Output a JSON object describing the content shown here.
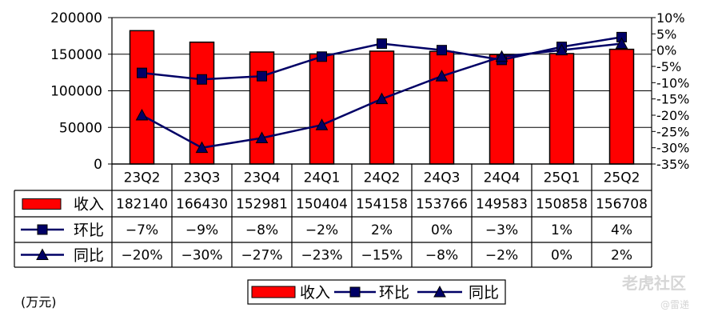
{
  "chart_data": {
    "type": "bar",
    "categories": [
      "23Q2",
      "23Q3",
      "23Q4",
      "24Q1",
      "24Q2",
      "24Q3",
      "24Q4",
      "25Q1",
      "25Q2"
    ],
    "series": [
      {
        "name": "收入",
        "kind": "bar",
        "axis": "left",
        "color": "#ff0000",
        "values": [
          182140,
          166430,
          152981,
          150404,
          154158,
          153766,
          149583,
          150858,
          156708
        ]
      },
      {
        "name": "环比",
        "kind": "line",
        "axis": "right",
        "marker": "square",
        "color": "#000066",
        "values": [
          -7,
          -9,
          -8,
          -2,
          2,
          0,
          -3,
          1,
          4
        ],
        "labels": [
          "−7%",
          "−9%",
          "−8%",
          "−2%",
          "2%",
          "0%",
          "−3%",
          "1%",
          "4%"
        ]
      },
      {
        "name": "同比",
        "kind": "line",
        "axis": "right",
        "marker": "triangle",
        "color": "#000066",
        "values": [
          -20,
          -30,
          -27,
          -23,
          -15,
          -8,
          -2,
          0,
          2
        ],
        "labels": [
          "−20%",
          "−30%",
          "−27%",
          "−23%",
          "−15%",
          "−8%",
          "−2%",
          "0%",
          "2%"
        ]
      }
    ],
    "y_left": {
      "range": [
        0,
        200000
      ],
      "ticks": [
        "0",
        "50000",
        "100000",
        "150000",
        "200000"
      ]
    },
    "y_right": {
      "range": [
        -35,
        10
      ],
      "ticks": [
        "-35%",
        "-30%",
        "-25%",
        "-20%",
        "-15%",
        "-10%",
        "-5%",
        "0%",
        "5%",
        "10%"
      ]
    },
    "grid": "horizontal",
    "legend": "bottom",
    "data_table": true
  },
  "unit_note": "(万元)",
  "watermark": {
    "logo": "老虎社区",
    "user": "@雷递"
  }
}
